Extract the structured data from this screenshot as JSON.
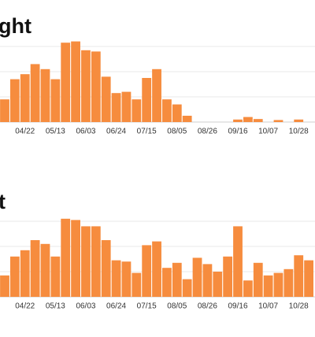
{
  "chart_data": [
    {
      "type": "bar",
      "title": "ght",
      "color": "#f68c3e",
      "ylim": [
        0,
        4
      ],
      "yticks": [
        0,
        1,
        2,
        3
      ],
      "grid": true,
      "categories": [
        null,
        null,
        "04/22",
        null,
        null,
        "05/13",
        null,
        null,
        "06/03",
        null,
        null,
        "06/24",
        null,
        null,
        "07/15",
        null,
        null,
        "08/05",
        null,
        null,
        "08/26",
        null,
        null,
        "09/16",
        null,
        null,
        "10/07",
        null,
        null,
        "10/28",
        null
      ],
      "values": [
        0.9,
        1.7,
        1.9,
        2.3,
        2.1,
        1.7,
        3.15,
        3.2,
        2.85,
        2.8,
        1.8,
        1.15,
        1.2,
        0.9,
        1.75,
        2.1,
        0.9,
        0.7,
        0.25,
        0,
        0,
        0,
        0,
        0.1,
        0.2,
        0.12,
        0,
        0.08,
        0,
        0.1,
        0
      ]
    },
    {
      "type": "bar",
      "title": "t",
      "color": "#f68c3e",
      "ylim": [
        0,
        4
      ],
      "yticks": [
        0,
        1,
        2,
        3
      ],
      "grid": true,
      "categories": [
        null,
        null,
        "04/22",
        null,
        null,
        "05/13",
        null,
        null,
        "06/03",
        null,
        null,
        "06/24",
        null,
        null,
        "07/15",
        null,
        null,
        "08/05",
        null,
        null,
        "08/26",
        null,
        null,
        "09/16",
        null,
        null,
        "10/07",
        null,
        null,
        "10/28",
        null
      ],
      "values": [
        0.85,
        1.6,
        1.85,
        2.25,
        2.1,
        1.6,
        3.1,
        3.05,
        2.8,
        2.8,
        2.25,
        1.45,
        1.4,
        0.95,
        2.05,
        2.2,
        1.15,
        1.35,
        0.7,
        1.55,
        1.3,
        1.0,
        1.6,
        2.8,
        0.65,
        1.35,
        0.85,
        0.95,
        1.1,
        1.65,
        1.45
      ]
    }
  ]
}
